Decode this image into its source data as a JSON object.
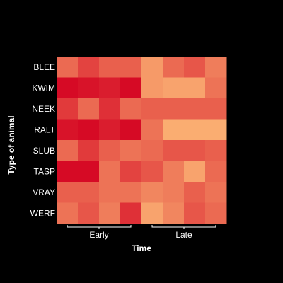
{
  "chart_data": {
    "type": "heatmap",
    "xlabel": "Time",
    "ylabel": "Type of animal",
    "rows": [
      "BLEE",
      "KWIM",
      "NEEK",
      "RALT",
      "SLUB",
      "TASP",
      "VRAY",
      "WERF"
    ],
    "columns": [
      {
        "group": "Early",
        "count": 4
      },
      {
        "group": "Late",
        "count": 4
      }
    ],
    "values": [
      [
        0.45,
        0.65,
        0.5,
        0.5,
        0.2,
        0.45,
        0.55,
        0.35
      ],
      [
        0.95,
        0.9,
        0.85,
        0.95,
        0.2,
        0.15,
        0.15,
        0.4
      ],
      [
        0.7,
        0.45,
        0.75,
        0.45,
        0.5,
        0.5,
        0.5,
        0.5
      ],
      [
        0.9,
        0.95,
        0.85,
        0.95,
        0.4,
        0.1,
        0.1,
        0.1
      ],
      [
        0.45,
        0.7,
        0.5,
        0.4,
        0.45,
        0.55,
        0.55,
        0.5
      ],
      [
        0.95,
        0.95,
        0.4,
        0.65,
        0.55,
        0.35,
        0.15,
        0.45
      ],
      [
        0.5,
        0.5,
        0.4,
        0.4,
        0.3,
        0.35,
        0.5,
        0.4
      ],
      [
        0.4,
        0.55,
        0.35,
        0.75,
        0.15,
        0.3,
        0.55,
        0.45
      ]
    ],
    "color_low": "#fec07a",
    "color_high": "#d40020",
    "background": "#000000",
    "grid": false,
    "legend": "none"
  }
}
